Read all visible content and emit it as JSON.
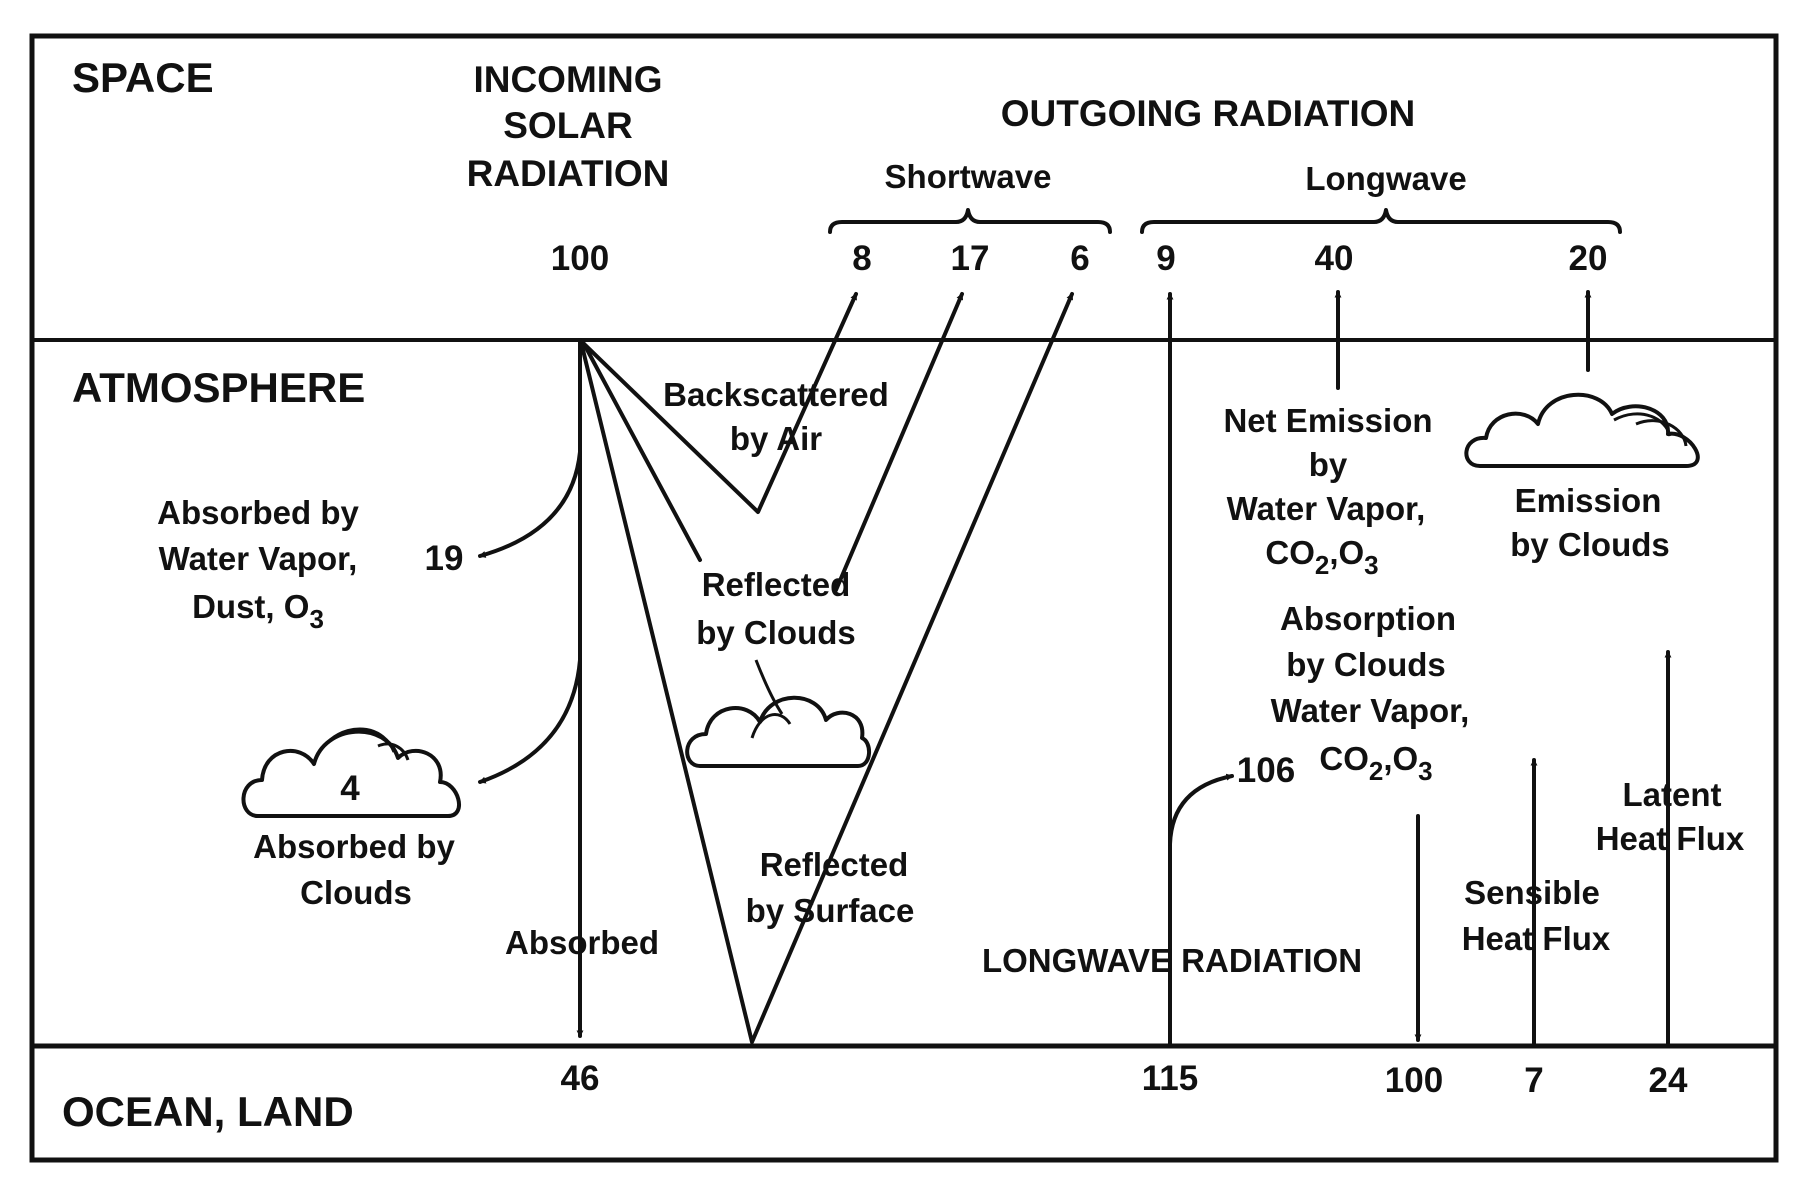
{
  "regions": {
    "space": "SPACE",
    "atmosphere": "ATMOSPHERE",
    "surface": "OCEAN, LAND"
  },
  "incoming": {
    "line1": "INCOMING",
    "line2": "SOLAR",
    "line3": "RADIATION",
    "value": "100"
  },
  "outgoing": {
    "title": "OUTGOING RADIATION",
    "shortwave": "Shortwave",
    "longwave": "Longwave",
    "sw_air": "8",
    "sw_clouds": "17",
    "sw_surface": "6",
    "lw_surface": "9",
    "lw_atmos": "40",
    "lw_clouds": "20"
  },
  "labels": {
    "backscattered_1": "Backscattered",
    "backscattered_2": "by Air",
    "absorbed_wv_1": "Absorbed by",
    "absorbed_wv_2": "Water Vapor,",
    "absorbed_wv_3": "Dust, O",
    "absorbed_wv_3_sub": "3",
    "absorbed_wv_value": "19",
    "absorbed_clouds_value": "4",
    "absorbed_clouds_1": "Absorbed by",
    "absorbed_clouds_2": "Clouds",
    "reflected_clouds_1": "Reflected",
    "reflected_clouds_2": "by Clouds",
    "reflected_surface_1": "Reflected",
    "reflected_surface_2": "by Surface",
    "absorbed": "Absorbed",
    "net_emission_1": "Net Emission",
    "net_emission_2": "by",
    "net_emission_3": "Water Vapor,",
    "net_emission_4a": "CO",
    "net_emission_4_sub1": "2",
    "net_emission_4b": ",O",
    "net_emission_4_sub2": "3",
    "emission_clouds_1": "Emission",
    "emission_clouds_2": "by Clouds",
    "absorption_1": "Absorption",
    "absorption_2": "by Clouds",
    "absorption_3": "Water Vapor,",
    "absorption_4a": "CO",
    "absorption_4_sub1": "2",
    "absorption_4b": ",O",
    "absorption_4_sub2": "3",
    "absorption_value": "106",
    "latent_1": "Latent",
    "latent_2": "Heat Flux",
    "sensible_1": "Sensible",
    "sensible_2": "Heat Flux",
    "longwave_radiation": "LONGWAVE RADIATION"
  },
  "surface_values": {
    "absorbed": "46",
    "longwave_up": "115",
    "back_radiation": "100",
    "sensible": "7",
    "latent": "24"
  }
}
